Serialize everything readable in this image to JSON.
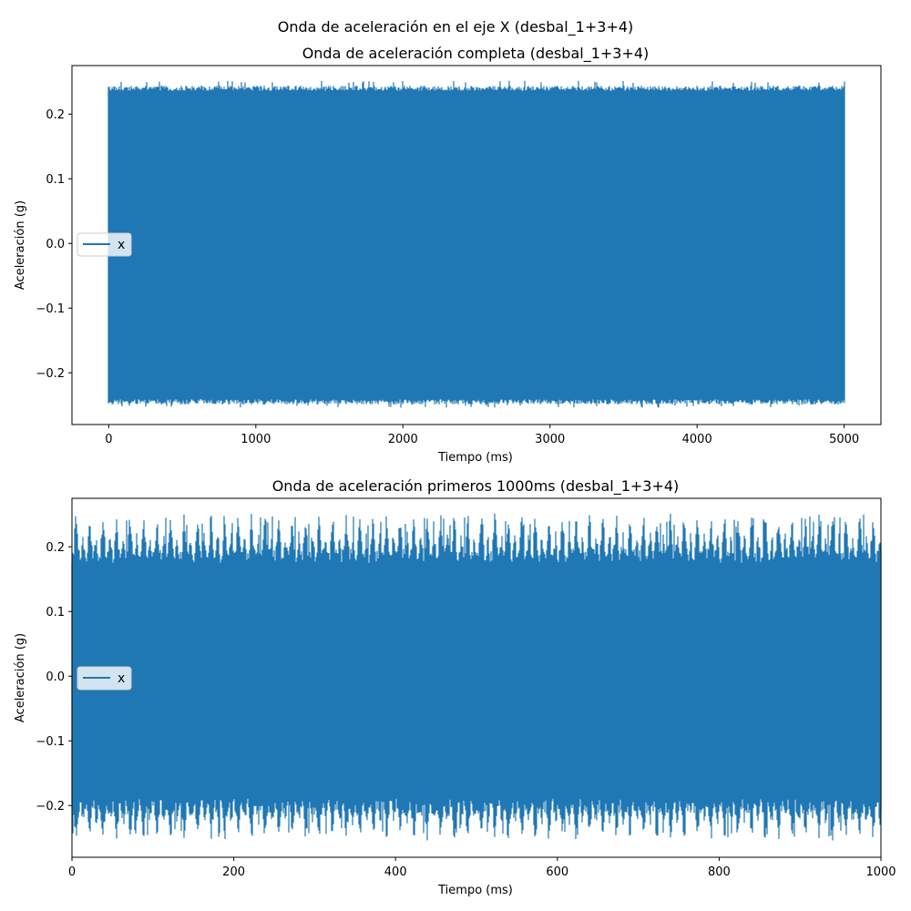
{
  "figure": {
    "suptitle": "Onda de aceleración en el eje X (desbal_1+3+4)"
  },
  "chart_data": [
    {
      "type": "line",
      "title": "Onda de aceleración completa (desbal_1+3+4)",
      "xlabel": "Tiempo (ms)",
      "ylabel": "Aceleración (g)",
      "xlim": [
        -250,
        5250
      ],
      "ylim": [
        -0.28,
        0.275
      ],
      "xticks": [
        0,
        1000,
        2000,
        3000,
        4000,
        5000
      ],
      "xtick_labels": [
        "0",
        "1000",
        "2000",
        "3000",
        "4000",
        "5000"
      ],
      "yticks": [
        -0.2,
        -0.1,
        0.0,
        0.1,
        0.2
      ],
      "ytick_labels": [
        "−0.2",
        "−0.1",
        "0.0",
        "0.1",
        "0.2"
      ],
      "grid": false,
      "legend": {
        "position": "center-left",
        "entries": [
          "x"
        ]
      },
      "series": [
        {
          "name": "x",
          "color": "#1f77b4",
          "x_range": [
            0,
            5000
          ],
          "envelope_upper_approx": 0.24,
          "envelope_lower_approx": -0.245,
          "peak_max": 0.252,
          "peak_min": -0.254
        }
      ]
    },
    {
      "type": "line",
      "title": "Onda de aceleración primeros 1000ms (desbal_1+3+4)",
      "xlabel": "Tiempo (ms)",
      "ylabel": "Aceleración (g)",
      "xlim": [
        0,
        1000
      ],
      "ylim": [
        -0.28,
        0.275
      ],
      "xticks": [
        0,
        200,
        400,
        600,
        800,
        1000
      ],
      "xtick_labels": [
        "0",
        "200",
        "400",
        "600",
        "800",
        "1000"
      ],
      "yticks": [
        -0.2,
        -0.1,
        0.0,
        0.1,
        0.2
      ],
      "ytick_labels": [
        "−0.2",
        "−0.1",
        "0.0",
        "0.1",
        "0.2"
      ],
      "grid": false,
      "legend": {
        "position": "center-left",
        "entries": [
          "x"
        ]
      },
      "series": [
        {
          "name": "x",
          "color": "#1f77b4",
          "x_range": [
            0,
            1000
          ],
          "burst_period_ms": 16.7,
          "burst_peak_max": 0.252,
          "burst_peak_min": -0.254,
          "baseline_upper": 0.185,
          "baseline_lower": -0.2
        }
      ]
    }
  ]
}
